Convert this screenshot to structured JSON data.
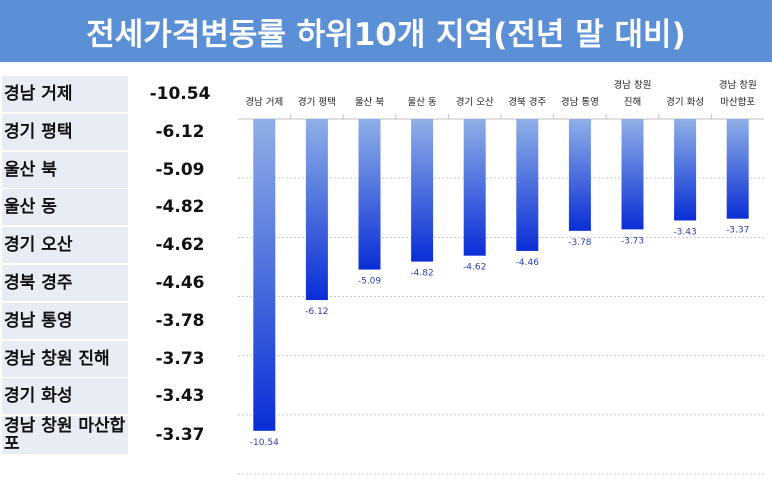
{
  "title": "전세가격변동률 하위10개 지역(전년 말 대비)",
  "colors": {
    "title_bg": "#5b8fd6",
    "bar_top": "#8fb0e6",
    "bar_bottom": "#0a2ed6",
    "table_bg": "#e8edf5"
  },
  "table": {
    "rows": [
      {
        "region": "경남 거제",
        "value": "-10.54"
      },
      {
        "region": "경기 평택",
        "value": "-6.12"
      },
      {
        "region": "울산 북",
        "value": "-5.09"
      },
      {
        "region": "울산 동",
        "value": "-4.82"
      },
      {
        "region": "경기 오산",
        "value": "-4.62"
      },
      {
        "region": "경북 경주",
        "value": "-4.46"
      },
      {
        "region": "경남 통영",
        "value": "-3.78"
      },
      {
        "region": "경남 창원 진해",
        "value": "-3.73"
      },
      {
        "region": "경기 화성",
        "value": "-3.43"
      },
      {
        "region": "경남 창원 마산합포",
        "value": "-3.37"
      }
    ]
  },
  "chart_data": {
    "type": "bar",
    "categories": [
      [
        "경남 거제"
      ],
      [
        "경기 평택"
      ],
      [
        "울산 북"
      ],
      [
        "울산 동"
      ],
      [
        "경기 오산"
      ],
      [
        "경북 경주"
      ],
      [
        "경남 통영"
      ],
      [
        "경남 창원",
        "진해"
      ],
      [
        "경기 화성"
      ],
      [
        "경남 창원",
        "마산합포"
      ]
    ],
    "values": [
      -10.54,
      -6.12,
      -5.09,
      -4.82,
      -4.62,
      -4.46,
      -3.78,
      -3.73,
      -3.43,
      -3.37
    ],
    "value_labels": [
      "-10.54",
      "-6.12",
      "-5.09",
      "-4.82",
      "-4.62",
      "-4.46",
      "-3.78",
      "-3.73",
      "-3.43",
      "-3.37"
    ],
    "ylim": [
      -12,
      0
    ],
    "grid": true,
    "category_axis_position": "top"
  }
}
